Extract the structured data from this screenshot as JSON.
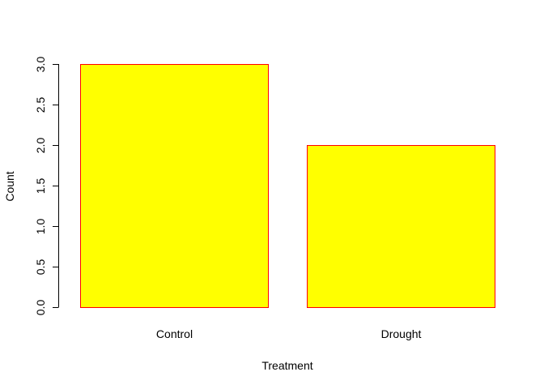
{
  "chart_data": {
    "type": "bar",
    "categories": [
      "Control",
      "Drought"
    ],
    "values": [
      3,
      2
    ],
    "xlabel": "Treatment",
    "ylabel": "Count",
    "ylim": [
      0,
      3
    ],
    "yticks": [
      0,
      0.5,
      1,
      1.5,
      2,
      2.5,
      3
    ],
    "ytick_labels": [
      "0.0",
      "0.5",
      "1.0",
      "1.5",
      "2.0",
      "2.5",
      "3.0"
    ],
    "grid": false,
    "legend": "none",
    "colors": {
      "bar_fill": "#ffff00",
      "bar_border": "#ff0000"
    }
  }
}
